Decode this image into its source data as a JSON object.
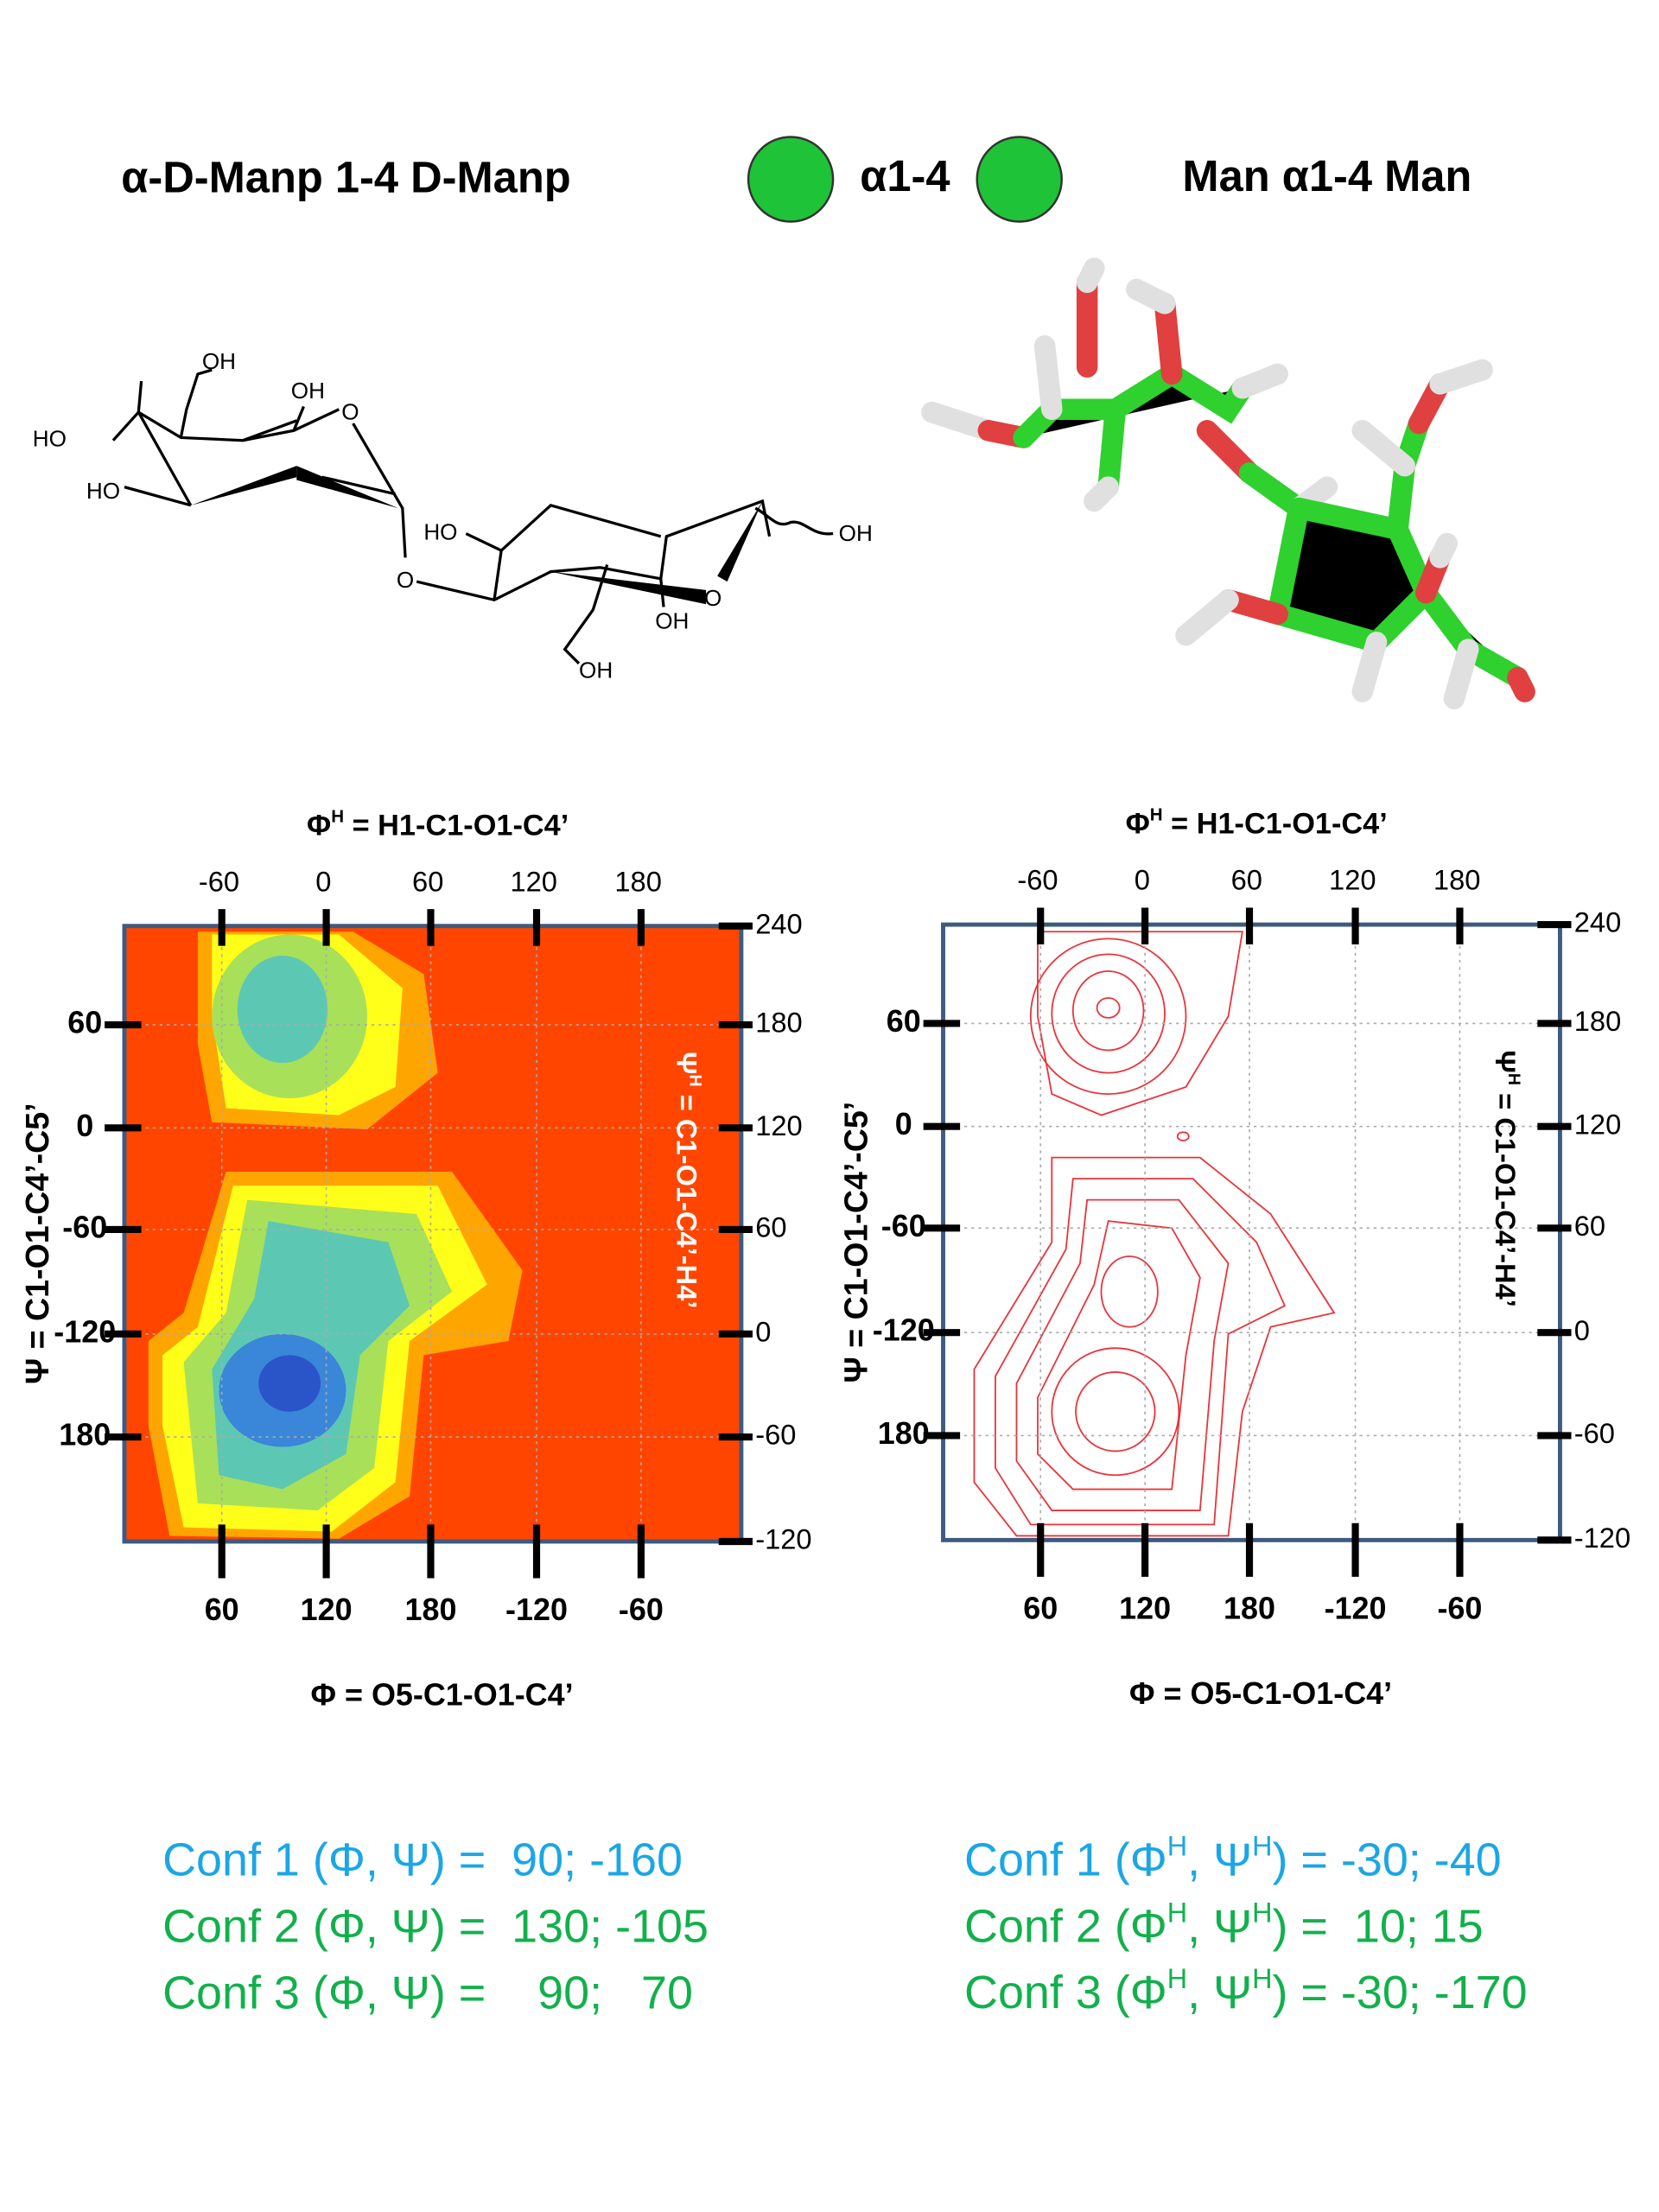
{
  "header": {
    "left_title": "α-D-Manp 1-4 D-Manp",
    "linkage": "α1-4",
    "right_title": "Man α1-4 Man"
  },
  "structure": {
    "atom_labels": [
      "OH",
      "OH",
      "O",
      "HO",
      "HO",
      "O",
      "HO",
      "OH",
      "O",
      "OH",
      "OH"
    ]
  },
  "plots": [
    {
      "top_axis_label": [
        "Φ",
        "H",
        " = H1-C1-O1-C4’"
      ],
      "top_ticks": [
        -60,
        0,
        60,
        120,
        180
      ],
      "bottom_ticks": [
        60,
        120,
        180,
        -120,
        -60
      ],
      "left_ticks": [
        60,
        0,
        -60,
        -120,
        180
      ],
      "right_ticks": [
        240,
        180,
        120,
        60,
        0,
        -60,
        -120
      ],
      "left_axis_label": [
        "Ψ",
        " = C1-O1-C4’-C5’"
      ],
      "right_axis_label": [
        "Ψ",
        "H",
        " = C1-O1-C4’-H4’"
      ],
      "bottom_axis_label": [
        "Φ",
        " = O5-C1-O1-C4’"
      ]
    },
    {
      "top_axis_label": [
        "Φ",
        "H",
        " = H1-C1-O1-C4’"
      ],
      "top_ticks": [
        -60,
        0,
        60,
        120,
        180
      ],
      "bottom_ticks": [
        60,
        120,
        180,
        -120,
        -60
      ],
      "left_ticks": [
        60,
        0,
        -60,
        -120,
        180
      ],
      "right_ticks": [
        240,
        180,
        120,
        60,
        0,
        -60,
        -120
      ],
      "left_axis_label": [
        "Ψ",
        " = C1-O1-C4’-C5’"
      ],
      "right_axis_label": [
        "Ψ",
        "H",
        " = C1-O1-C4’-H4’"
      ],
      "bottom_axis_label": [
        "Φ",
        " = O5-C1-O1-C4’"
      ]
    }
  ],
  "conformations": {
    "left": [
      "Conf 1 (Φ, Ψ) =  90; -160",
      "Conf 2 (Φ, Ψ) =  130; -105",
      "Conf 3 (Φ, Ψ) =    90;   70"
    ],
    "right": [
      [
        "Conf 1 (Φ",
        "H",
        ", Ψ",
        "H",
        ") = -30; -40"
      ],
      [
        "Conf 2 (Φ",
        "H",
        ", Ψ",
        "H",
        ") =  10; 15"
      ],
      [
        "Conf 3 (Φ",
        "H",
        ", Ψ",
        "H",
        ") = -30; -170"
      ]
    ]
  }
}
